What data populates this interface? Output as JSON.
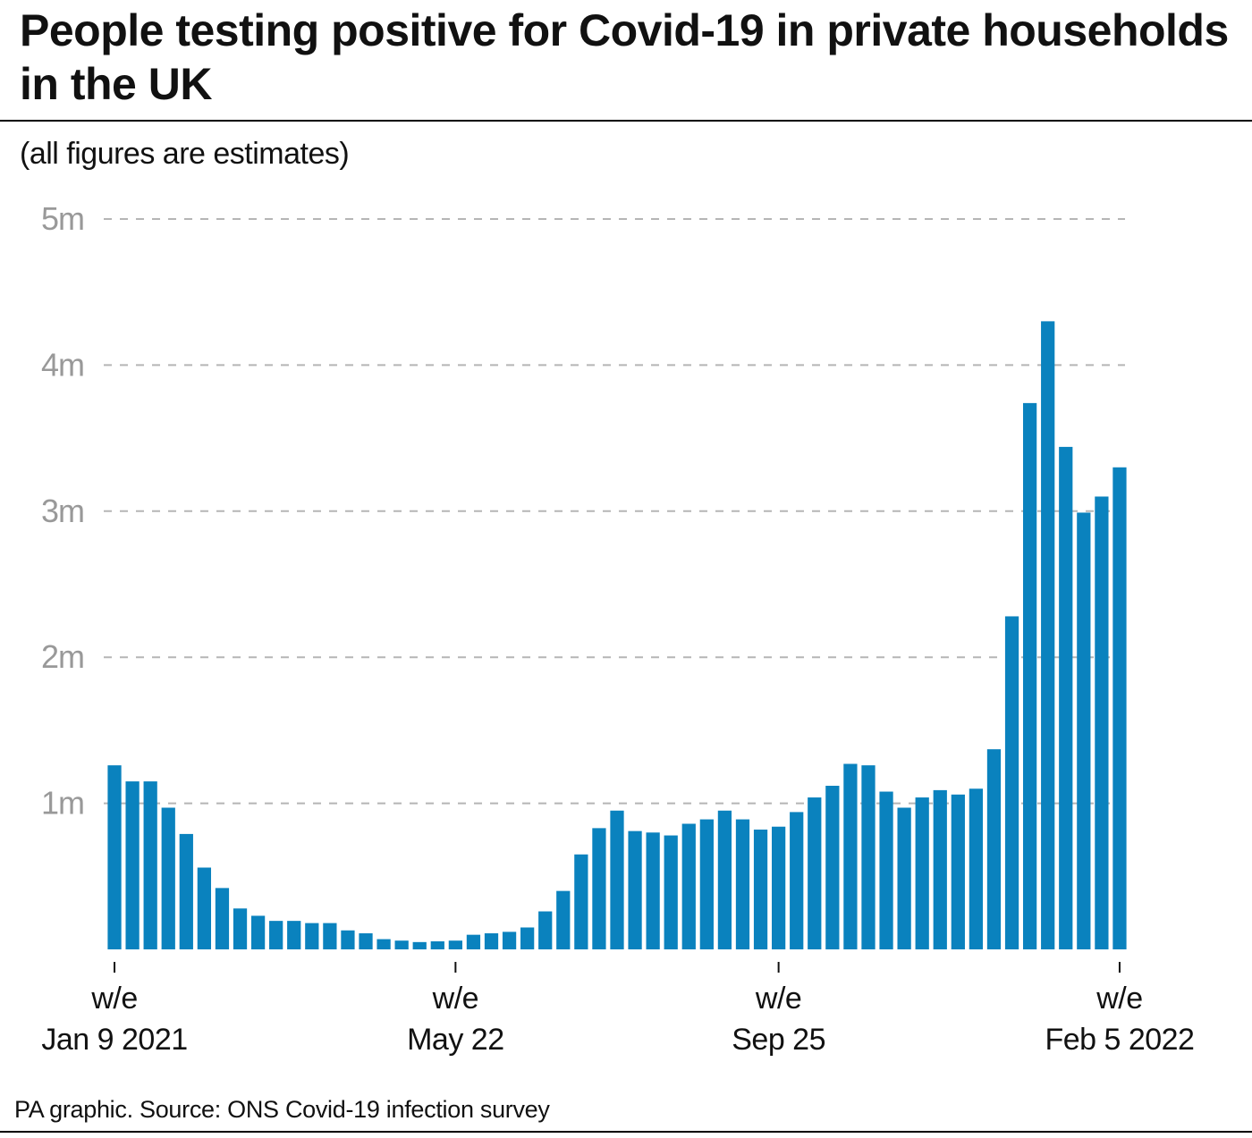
{
  "title": "People testing positive for Covid-19 in private households in the UK",
  "subtitle": "(all figures are estimates)",
  "source": "PA graphic. Source: ONS Covid-19 infection survey",
  "colors": {
    "bar": "#0a82be",
    "grid": "#b5b5b5",
    "tick_label": "#999999",
    "text": "#111111"
  },
  "chart_data": {
    "type": "bar",
    "title": "People testing positive for Covid-19 in private households in the UK",
    "subtitle": "(all figures are estimates)",
    "xlabel": "",
    "ylabel": "",
    "ylim": [
      0,
      5000000
    ],
    "yticks": [
      {
        "value": 1000000,
        "label": "1m"
      },
      {
        "value": 2000000,
        "label": "2m"
      },
      {
        "value": 3000000,
        "label": "3m"
      },
      {
        "value": 4000000,
        "label": "4m"
      },
      {
        "value": 5000000,
        "label": "5m"
      }
    ],
    "grid": true,
    "grid_style": "dashed",
    "legend": "none",
    "x_tick_labels": [
      {
        "index": 0,
        "line1": "w/e",
        "line2": "Jan 9 2021"
      },
      {
        "index": 19,
        "line1": "w/e",
        "line2": "May 22"
      },
      {
        "index": 37,
        "line1": "w/e",
        "line2": "Sep 25"
      },
      {
        "index": 56,
        "line1": "w/e",
        "line2": "Feb 5 2022"
      }
    ],
    "series": [
      {
        "values": [
          1260000,
          1150000,
          1150000,
          970000,
          790000,
          560000,
          420000,
          280000,
          230000,
          195000,
          195000,
          180000,
          180000,
          130000,
          110000,
          70000,
          60000,
          50000,
          55000,
          60000,
          100000,
          110000,
          120000,
          150000,
          260000,
          400000,
          650000,
          830000,
          950000,
          810000,
          800000,
          780000,
          860000,
          890000,
          950000,
          890000,
          820000,
          840000,
          940000,
          1040000,
          1120000,
          1270000,
          1260000,
          1080000,
          970000,
          1040000,
          1090000,
          1060000,
          1100000,
          1370000,
          2280000,
          3740000,
          4300000,
          3440000,
          2990000,
          3100000,
          3300000
        ]
      }
    ]
  }
}
